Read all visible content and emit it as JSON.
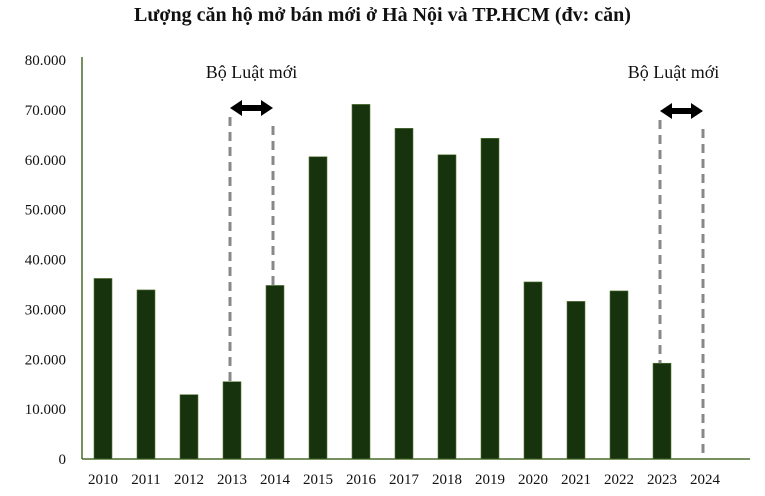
{
  "chart_data": {
    "type": "bar",
    "title": "Lượng căn hộ mở bán mới ở Hà Nội và TP.HCM (đv: căn)",
    "xlabel": "",
    "ylabel": "",
    "categories": [
      "2010",
      "2011",
      "2012",
      "2013",
      "2014",
      "2015",
      "2016",
      "2017",
      "2018",
      "2019",
      "2020",
      "2021",
      "2022",
      "2023",
      "2024"
    ],
    "values": [
      36200,
      33900,
      12900,
      15500,
      34800,
      60600,
      71100,
      66300,
      61000,
      64300,
      35500,
      31600,
      33700,
      19200,
      0
    ],
    "ylim": [
      0,
      80000
    ],
    "yticks": [
      "0",
      "10.000",
      "20.000",
      "30.000",
      "40.000",
      "50.000",
      "60.000",
      "70.000",
      "80.000"
    ],
    "grid": false,
    "bar_color": "#17330d",
    "annotations": [
      {
        "text": "Bộ Luật mới",
        "from": "2013",
        "to": "2014"
      },
      {
        "text": "Bộ Luật mới",
        "from": "2023",
        "to": "2024"
      }
    ]
  }
}
